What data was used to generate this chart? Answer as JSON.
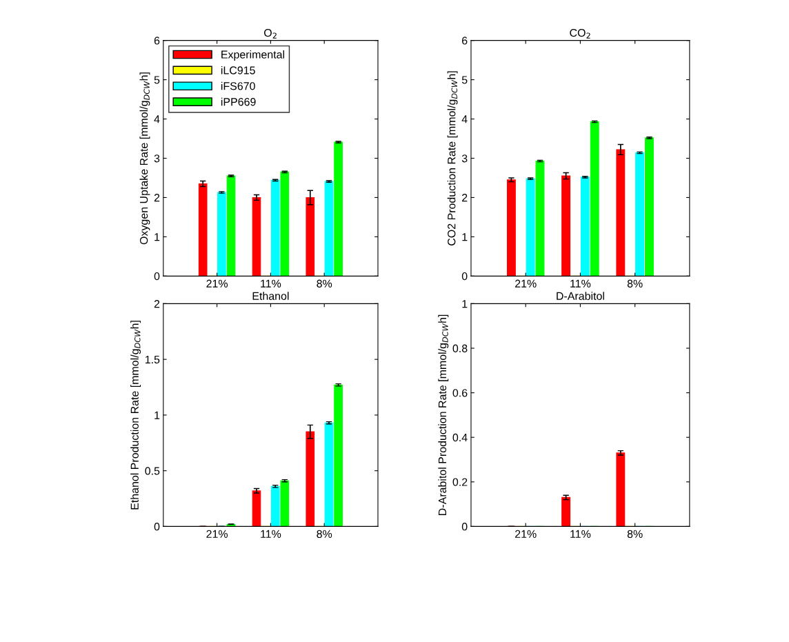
{
  "chart_data": [
    {
      "type": "bar",
      "title": "O$_{2}$",
      "ylabel": "Oxygen Uptake Rate [mmol/g$_{DCW}$h]",
      "categories": [
        "21%",
        "11%",
        "8%"
      ],
      "ylim": [
        0,
        6
      ],
      "yticks": [
        0,
        1,
        2,
        3,
        4,
        5,
        6
      ],
      "legend": "top left",
      "series": [
        {
          "name": "Experimental",
          "color": "#ff0000",
          "values": [
            2.35,
            2.0,
            2.0
          ],
          "errors": [
            0.07,
            0.07,
            0.18
          ]
        },
        {
          "name": "iLC915",
          "color": "#ffff00",
          "values": [
            0,
            0,
            0
          ]
        },
        {
          "name": "iFS670",
          "color": "#00ffff",
          "values": [
            2.13,
            2.44,
            2.41
          ],
          "errors": [
            0.02,
            0.02,
            0.02
          ]
        },
        {
          "name": "iPP669",
          "color": "#00ff00",
          "values": [
            2.55,
            2.65,
            3.41
          ],
          "errors": [
            0.02,
            0.02,
            0.02
          ]
        }
      ]
    },
    {
      "type": "bar",
      "title": "CO$_{2}$",
      "ylabel": "CO2 Production Rate [mmol/g$_{DCW}$h]",
      "categories": [
        "21%",
        "11%",
        "8%"
      ],
      "ylim": [
        0,
        6
      ],
      "yticks": [
        0,
        1,
        2,
        3,
        4,
        5,
        6
      ],
      "series": [
        {
          "color": "#ff0000",
          "values": [
            2.45,
            2.55,
            3.22
          ],
          "errors": [
            0.05,
            0.08,
            0.13
          ]
        },
        {
          "color": "#ffff00",
          "values": [
            0,
            0,
            0
          ]
        },
        {
          "color": "#00ffff",
          "values": [
            2.48,
            2.52,
            3.14
          ],
          "errors": [
            0.02,
            0.02,
            0.02
          ]
        },
        {
          "color": "#00ff00",
          "values": [
            2.93,
            3.93,
            3.52
          ],
          "errors": [
            0.02,
            0.02,
            0.02
          ]
        }
      ]
    },
    {
      "type": "bar",
      "title": "Ethanol",
      "ylabel": "Ethanol Production Rate [mmol/g$_{DCW}$h]",
      "categories": [
        "21%",
        "11%",
        "8%"
      ],
      "ylim": [
        0,
        2
      ],
      "yticks": [
        0,
        0.5,
        1,
        1.5,
        2
      ],
      "series": [
        {
          "color": "#ff0000",
          "values": [
            0,
            0.32,
            0.85
          ],
          "errors": [
            0,
            0.02,
            0.06
          ]
        },
        {
          "color": "#ffff00",
          "values": [
            0,
            0,
            0
          ]
        },
        {
          "color": "#00ffff",
          "values": [
            0,
            0.36,
            0.93
          ],
          "errors": [
            0,
            0.01,
            0.01
          ]
        },
        {
          "color": "#00ff00",
          "values": [
            0.02,
            0.41,
            1.27
          ],
          "errors": [
            null,
            0.01,
            0.01
          ]
        }
      ]
    },
    {
      "type": "bar",
      "title": "D-Arabitol",
      "ylabel": "D-Arabitol Production Rate [mmol/g$_{DCW}$h]",
      "categories": [
        "21%",
        "11%",
        "8%"
      ],
      "ylim": [
        0,
        1
      ],
      "yticks": [
        0,
        0.2,
        0.4,
        0.6,
        0.8,
        1
      ],
      "series": [
        {
          "color": "#ff0000",
          "values": [
            0,
            0.13,
            0.33
          ],
          "errors": [
            0,
            0.01,
            0.01
          ]
        },
        {
          "color": "#ffff00",
          "values": [
            0,
            0,
            0
          ]
        },
        {
          "color": "#00ffff",
          "values": [
            0,
            0,
            0
          ]
        },
        {
          "color": "#00ff00",
          "values": [
            0,
            0,
            0
          ]
        }
      ]
    }
  ]
}
